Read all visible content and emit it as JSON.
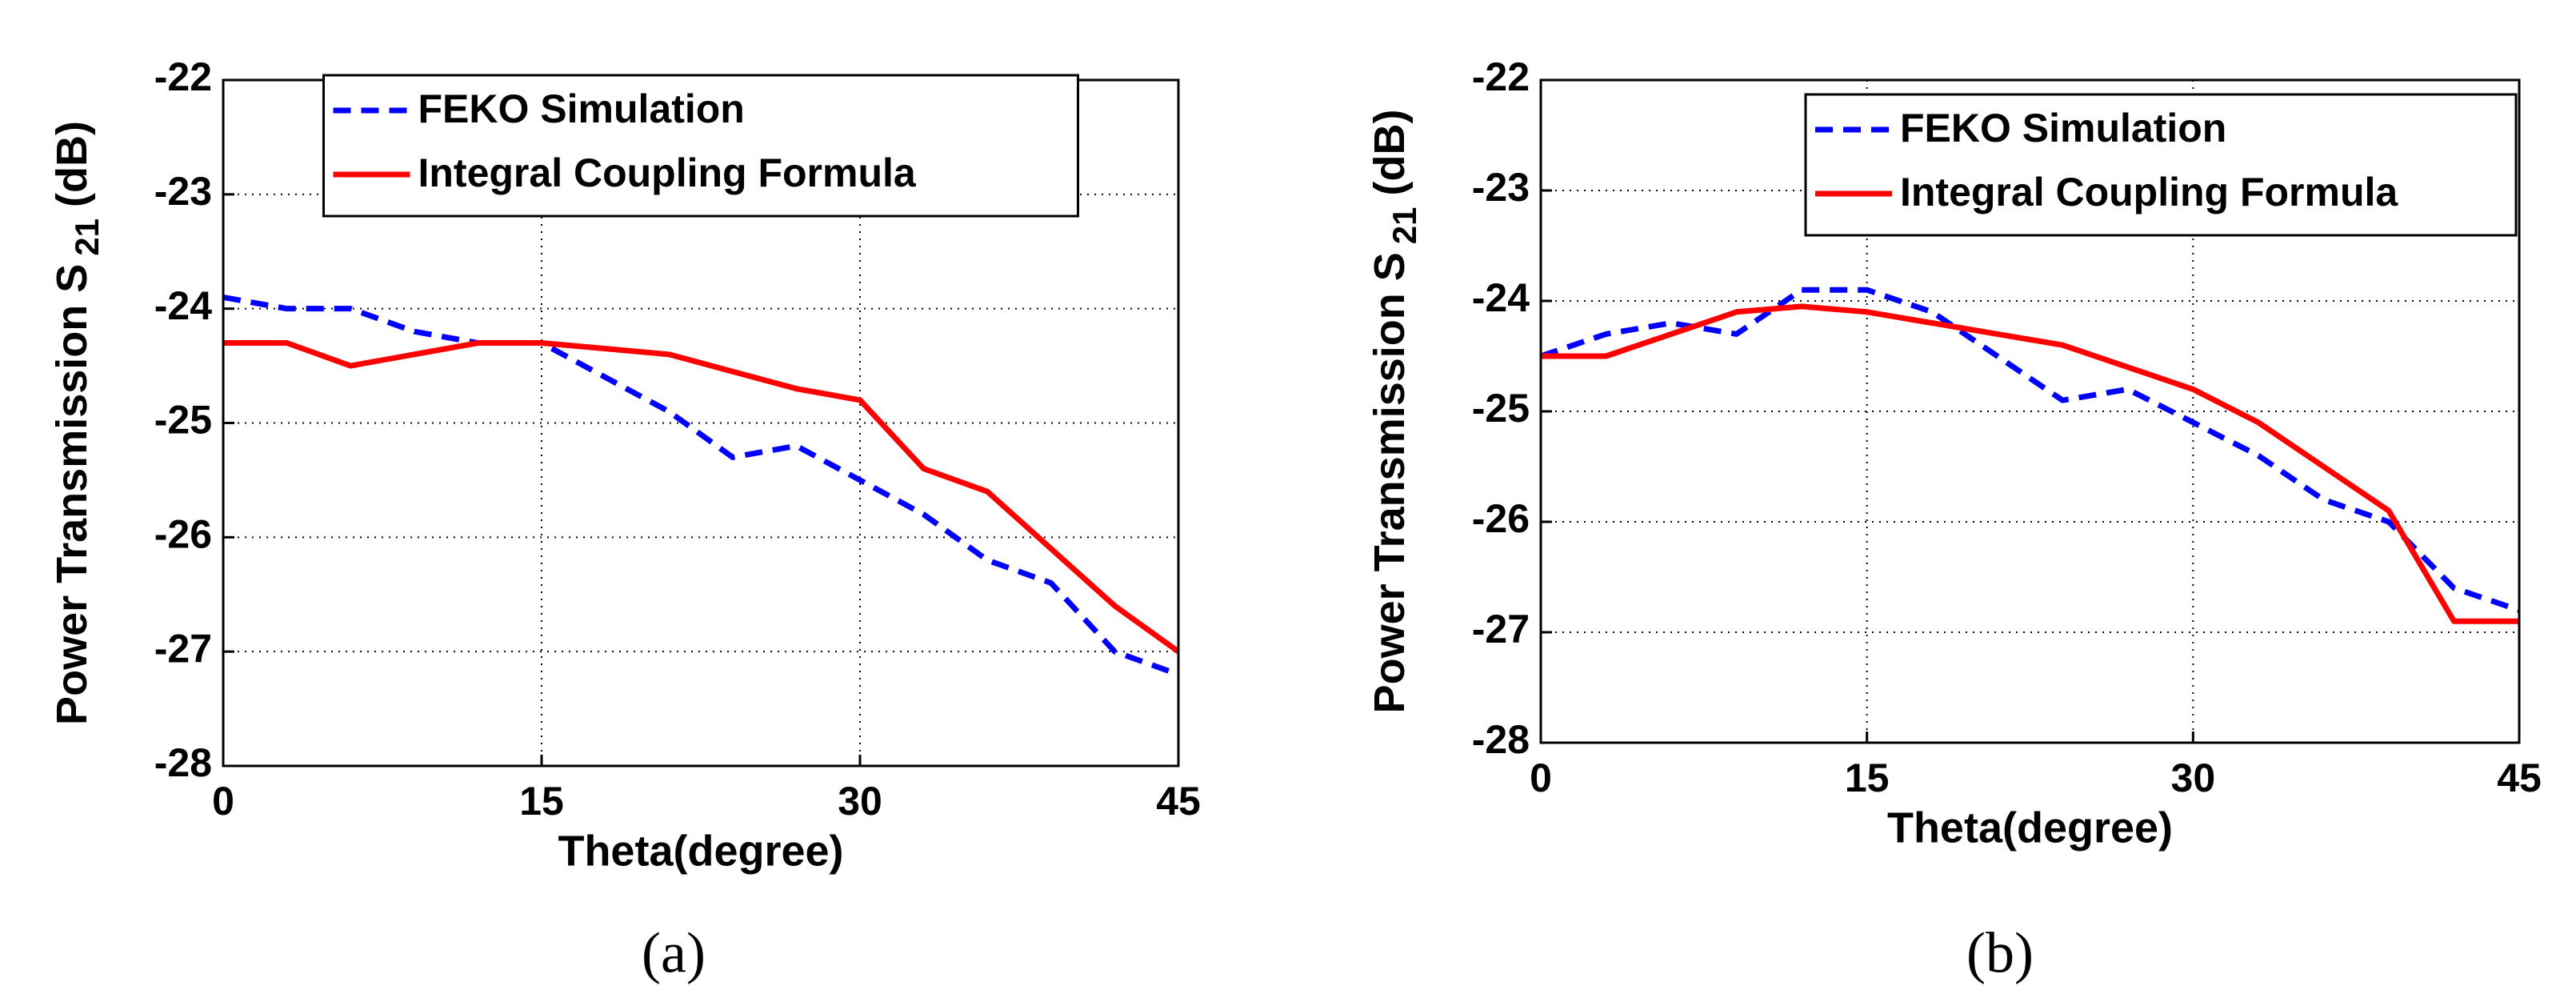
{
  "chart_data": [
    {
      "type": "line",
      "caption": "(a)",
      "xlabel": "Theta(degree)",
      "ylabel": "Power Transmission S",
      "ylabel_subscript": "21",
      "ylabel_unit": "(dB)",
      "x": [
        0,
        3,
        6,
        9,
        12,
        15,
        18,
        21,
        24,
        27,
        30,
        33,
        36,
        39,
        42,
        45
      ],
      "xlim": [
        0,
        45
      ],
      "xticks": [
        0,
        15,
        30,
        45
      ],
      "ylim": [
        -28,
        -22
      ],
      "yticks": [
        -28,
        -27,
        -26,
        -25,
        -24,
        -23,
        -22
      ],
      "grid": true,
      "legend": "top",
      "series": [
        {
          "name": "FEKO Simulation",
          "color": "#0000ff",
          "style": "dashed",
          "values": [
            -23.9,
            -24.0,
            -24.0,
            -24.2,
            -24.3,
            -24.3,
            -24.6,
            -24.9,
            -25.3,
            -25.2,
            -25.5,
            -25.8,
            -26.2,
            -26.4,
            -27.0,
            -27.2
          ]
        },
        {
          "name": "Integral Coupling Formula",
          "color": "#ff0000",
          "style": "solid",
          "values": [
            -24.3,
            -24.3,
            -24.5,
            -24.4,
            -24.3,
            -24.3,
            -24.35,
            -24.4,
            -24.55,
            -24.7,
            -24.8,
            -25.4,
            -25.6,
            -26.1,
            -26.6,
            -27.0
          ]
        }
      ]
    },
    {
      "type": "line",
      "caption": "(b)",
      "xlabel": "Theta(degree)",
      "ylabel": "Power Transmission S",
      "ylabel_subscript": "21",
      "ylabel_unit": "(dB)",
      "x": [
        0,
        3,
        6,
        9,
        12,
        15,
        18,
        21,
        24,
        27,
        30,
        33,
        36,
        39,
        42,
        45
      ],
      "xlim": [
        0,
        45
      ],
      "xticks": [
        0,
        15,
        30,
        45
      ],
      "ylim": [
        -28,
        -22
      ],
      "yticks": [
        -28,
        -27,
        -26,
        -25,
        -24,
        -23,
        -22
      ],
      "grid": true,
      "legend": "top-right",
      "series": [
        {
          "name": "FEKO Simulation",
          "color": "#0000ff",
          "style": "dashed",
          "values": [
            -24.5,
            -24.3,
            -24.2,
            -24.3,
            -23.9,
            -23.9,
            -24.1,
            -24.5,
            -24.9,
            -24.8,
            -25.1,
            -25.4,
            -25.8,
            -26.0,
            -26.6,
            -26.8
          ]
        },
        {
          "name": "Integral Coupling Formula",
          "color": "#ff0000",
          "style": "solid",
          "values": [
            -24.5,
            -24.5,
            -24.3,
            -24.1,
            -24.05,
            -24.1,
            -24.2,
            -24.3,
            -24.4,
            -24.6,
            -24.8,
            -25.1,
            -25.5,
            -25.9,
            -26.9,
            -26.9
          ]
        }
      ]
    }
  ]
}
